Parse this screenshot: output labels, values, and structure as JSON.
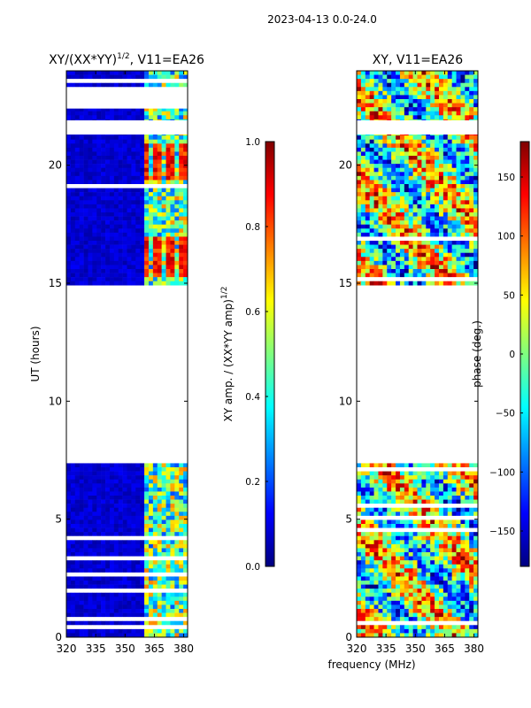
{
  "figure": {
    "suptitle": "2023-04-13 0.0-24.0"
  },
  "colormap": [
    "#00007f",
    "#0000ff",
    "#007fff",
    "#00ffff",
    "#7fff7f",
    "#ffff00",
    "#ff7f00",
    "#ff0000",
    "#7f0000"
  ],
  "chart_data": [
    {
      "type": "heatmap",
      "title_main": "XY/(XX*YY)",
      "title_sup": "1/2",
      "title_tail": ", V11=EA26",
      "ylabel": "UT (hours)",
      "xlabel": "",
      "xlim": [
        320,
        382
      ],
      "ylim": [
        0,
        24
      ],
      "xticks": [
        "320",
        "335",
        "350",
        "365",
        "380"
      ],
      "yticks": [
        "0",
        "5",
        "10",
        "15",
        "20"
      ],
      "data_ranges_hours": [
        [
          0,
          7.6
        ],
        [
          14.9,
          24
        ]
      ],
      "gap_hours": [
        [
          7.6,
          14.9
        ],
        [
          21.3,
          21.9
        ],
        [
          22.4,
          23.2
        ]
      ],
      "colorbar": {
        "label_main": "XY amp. / (XX*YY amp)",
        "label_sup": "1/2",
        "ticks": [
          "0.0",
          "0.2",
          "0.4",
          "0.6",
          "0.8",
          "1.0"
        ],
        "range": [
          0,
          1
        ]
      }
    },
    {
      "type": "heatmap",
      "title_main": "XY, V11=EA26",
      "ylabel": "",
      "xlabel": "frequency (MHz)",
      "xlim": [
        320,
        382
      ],
      "ylim": [
        0,
        24
      ],
      "xticks": [
        "320",
        "335",
        "350",
        "365",
        "380"
      ],
      "yticks": [
        "0",
        "5",
        "10",
        "15",
        "20"
      ],
      "data_ranges_hours": [
        [
          0,
          7.6
        ],
        [
          14.9,
          24
        ]
      ],
      "gap_hours": [
        [
          7.6,
          14.9
        ],
        [
          21.3,
          21.9
        ]
      ],
      "colorbar": {
        "label_main": "phase (deg.)",
        "ticks": [
          "−150",
          "−100",
          "−50",
          "0",
          "50",
          "100",
          "150"
        ],
        "range": [
          -180,
          180
        ]
      }
    }
  ]
}
